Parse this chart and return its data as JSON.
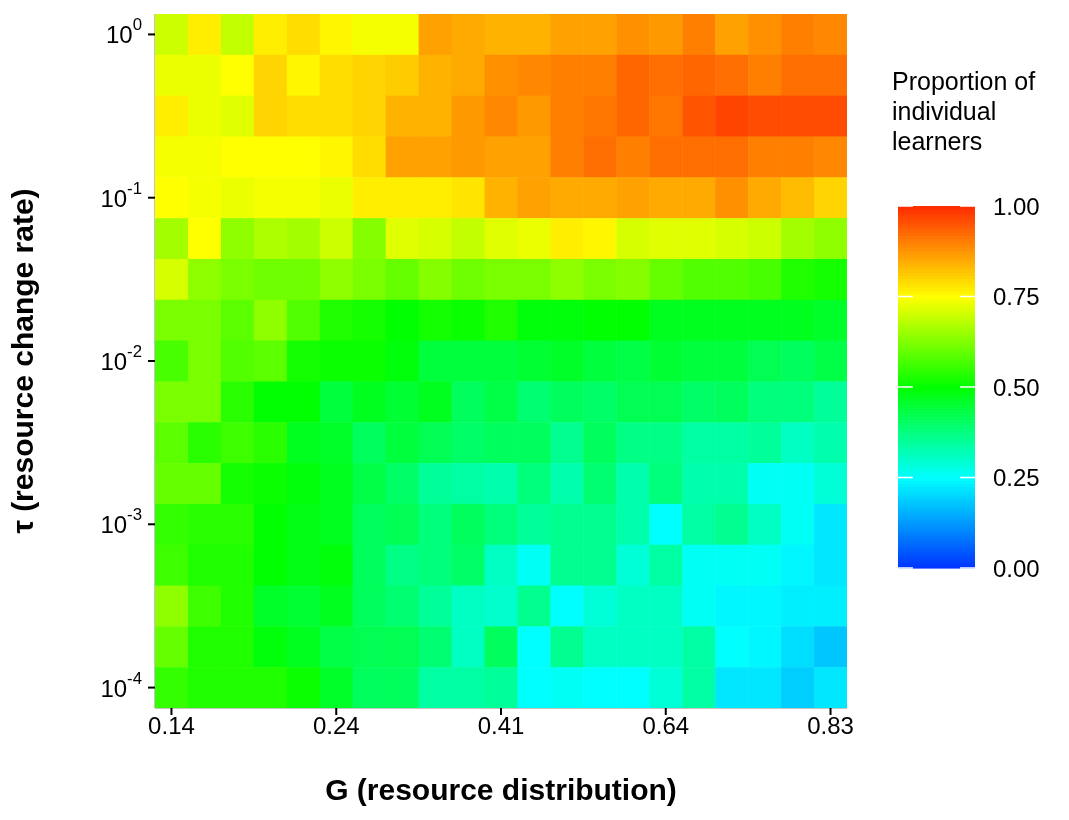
{
  "chart_data": {
    "type": "heatmap",
    "xlabel": "G (resource distribution)",
    "ylabel": "τ (resource change rate)",
    "legend_title": "Proportion of individual learners",
    "categories": [
      "0.14",
      null,
      null,
      null,
      null,
      "0.24",
      null,
      null,
      null,
      null,
      "0.41",
      null,
      null,
      null,
      null,
      "0.64",
      null,
      null,
      null,
      null,
      "0.83"
    ],
    "y_categories": [
      "10$^{0}$",
      null,
      null,
      null,
      "10$^{-1}$",
      null,
      null,
      null,
      "10$^{-2}$",
      null,
      null,
      null,
      "10$^{-3}$",
      null,
      null,
      null,
      "10$^{-4}$"
    ],
    "cells": [
      [
        0.7,
        0.77,
        0.69,
        0.77,
        0.79,
        0.76,
        0.74,
        0.74,
        0.86,
        0.85,
        0.84,
        0.84,
        0.86,
        0.86,
        0.88,
        0.87,
        0.9,
        0.86,
        0.88,
        0.9,
        0.89
      ],
      [
        0.73,
        0.73,
        0.75,
        0.8,
        0.76,
        0.79,
        0.8,
        0.81,
        0.84,
        0.85,
        0.88,
        0.89,
        0.9,
        0.9,
        0.93,
        0.92,
        0.93,
        0.92,
        0.9,
        0.92,
        0.92
      ],
      [
        0.77,
        0.73,
        0.72,
        0.8,
        0.79,
        0.79,
        0.8,
        0.84,
        0.84,
        0.87,
        0.89,
        0.87,
        0.9,
        0.91,
        0.93,
        0.91,
        0.95,
        0.97,
        0.96,
        0.96,
        0.96
      ],
      [
        0.74,
        0.74,
        0.75,
        0.75,
        0.75,
        0.76,
        0.79,
        0.86,
        0.86,
        0.87,
        0.86,
        0.86,
        0.9,
        0.92,
        0.9,
        0.92,
        0.92,
        0.92,
        0.9,
        0.9,
        0.89
      ],
      [
        0.75,
        0.74,
        0.73,
        0.74,
        0.74,
        0.73,
        0.77,
        0.77,
        0.77,
        0.78,
        0.84,
        0.86,
        0.85,
        0.85,
        0.86,
        0.85,
        0.85,
        0.88,
        0.85,
        0.83,
        0.8
      ],
      [
        0.66,
        0.75,
        0.64,
        0.67,
        0.66,
        0.7,
        0.63,
        0.72,
        0.71,
        0.69,
        0.72,
        0.73,
        0.77,
        0.76,
        0.71,
        0.72,
        0.72,
        0.71,
        0.7,
        0.66,
        0.64
      ],
      [
        0.71,
        0.64,
        0.62,
        0.61,
        0.61,
        0.64,
        0.62,
        0.6,
        0.63,
        0.61,
        0.62,
        0.62,
        0.64,
        0.62,
        0.63,
        0.6,
        0.58,
        0.58,
        0.57,
        0.53,
        0.52
      ],
      [
        0.62,
        0.62,
        0.59,
        0.64,
        0.58,
        0.53,
        0.52,
        0.5,
        0.52,
        0.51,
        0.53,
        0.49,
        0.49,
        0.5,
        0.5,
        0.47,
        0.47,
        0.47,
        0.47,
        0.47,
        0.46
      ],
      [
        0.57,
        0.62,
        0.58,
        0.59,
        0.52,
        0.51,
        0.51,
        0.49,
        0.44,
        0.44,
        0.44,
        0.45,
        0.46,
        0.44,
        0.43,
        0.45,
        0.44,
        0.44,
        0.42,
        0.41,
        0.43
      ],
      [
        0.62,
        0.62,
        0.54,
        0.5,
        0.5,
        0.44,
        0.47,
        0.45,
        0.47,
        0.41,
        0.43,
        0.39,
        0.41,
        0.4,
        0.42,
        0.42,
        0.4,
        0.41,
        0.38,
        0.38,
        0.35
      ],
      [
        0.59,
        0.54,
        0.56,
        0.54,
        0.47,
        0.46,
        0.41,
        0.44,
        0.42,
        0.4,
        0.41,
        0.41,
        0.36,
        0.41,
        0.37,
        0.37,
        0.34,
        0.34,
        0.35,
        0.31,
        0.33
      ],
      [
        0.6,
        0.6,
        0.52,
        0.51,
        0.49,
        0.47,
        0.43,
        0.4,
        0.35,
        0.34,
        0.33,
        0.38,
        0.33,
        0.39,
        0.33,
        0.38,
        0.33,
        0.33,
        0.26,
        0.26,
        0.29
      ],
      [
        0.55,
        0.54,
        0.54,
        0.5,
        0.48,
        0.47,
        0.41,
        0.42,
        0.38,
        0.41,
        0.38,
        0.35,
        0.36,
        0.36,
        0.33,
        0.25,
        0.34,
        0.36,
        0.31,
        0.26,
        0.22
      ],
      [
        0.56,
        0.53,
        0.53,
        0.5,
        0.48,
        0.49,
        0.41,
        0.37,
        0.38,
        0.4,
        0.31,
        0.26,
        0.36,
        0.36,
        0.29,
        0.34,
        0.26,
        0.26,
        0.26,
        0.24,
        0.22
      ],
      [
        0.64,
        0.56,
        0.53,
        0.46,
        0.45,
        0.47,
        0.41,
        0.39,
        0.35,
        0.31,
        0.3,
        0.36,
        0.25,
        0.29,
        0.31,
        0.31,
        0.26,
        0.24,
        0.24,
        0.23,
        0.23
      ],
      [
        0.6,
        0.53,
        0.53,
        0.49,
        0.47,
        0.43,
        0.42,
        0.42,
        0.39,
        0.31,
        0.41,
        0.25,
        0.36,
        0.31,
        0.31,
        0.31,
        0.34,
        0.25,
        0.24,
        0.21,
        0.18
      ],
      [
        0.55,
        0.53,
        0.53,
        0.53,
        0.51,
        0.46,
        0.41,
        0.41,
        0.34,
        0.34,
        0.35,
        0.25,
        0.26,
        0.25,
        0.25,
        0.29,
        0.34,
        0.22,
        0.22,
        0.19,
        0.22
      ]
    ],
    "clim": [
      0,
      1
    ],
    "cticks": [
      {
        "value": 0,
        "label": "0.00"
      },
      {
        "value": 0.25,
        "label": "0.25"
      },
      {
        "value": 0.5,
        "label": "0.50"
      },
      {
        "value": 0.75,
        "label": "0.75"
      },
      {
        "value": 1,
        "label": "1.00"
      }
    ]
  }
}
